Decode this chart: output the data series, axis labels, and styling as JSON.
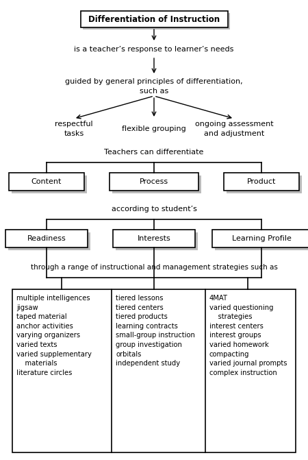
{
  "bg_color": "#ffffff",
  "shadow_color": "#bbbbbb",
  "title_text": "Differentiation of Instruction",
  "response_text": "is a teacher’s response to learner’s needs",
  "guided_text": "guided by general principles of differentiation,\nsuch as",
  "respectful_text": "respectful\ntasks",
  "flexible_text": "flexible grouping",
  "ongoing_text": "ongoing assessment\nand adjustment",
  "teachers_text": "Teachers can differentiate",
  "content_text": "Content",
  "process_text": "Process",
  "product_text": "Product",
  "according_text": "according to student’s",
  "readiness_text": "Readiness",
  "interests_text": "Interests",
  "learning_text": "Learning Profile",
  "through_text": "through a range of instructional and management strategies such as",
  "col1_text": "multiple intelligences\njigsaw\ntaped material\nanchor activities\nvarying organizers\nvaried texts\nvaried supplementary\n    materials\nliterature circles",
  "col2_text": "tiered lessons\ntiered centers\ntiered products\nlearning contracts\nsmall-group instruction\ngroup investigation\norbitals\nindependent study",
  "col3_text": "4MAT\nvaried questioning\n    strategies\ninterest centers\ninterest groups\nvaried homework\ncompacting\nvaried journal prompts\ncomplex instruction",
  "fig_w": 4.5,
  "fig_h": 6.71,
  "dpi": 100
}
